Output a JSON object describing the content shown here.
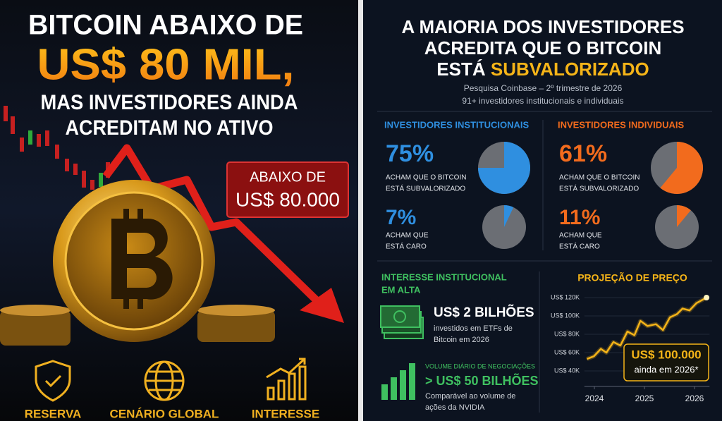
{
  "left": {
    "headline": [
      "BITCOIN ABAIXO DE",
      "US$ 80 MIL,",
      "MAS INVESTIDORES AINDA",
      "ACREDITAM NO ATIVO"
    ],
    "badge": [
      "ABAIXO DE",
      "US$ 80.000"
    ],
    "icons": [
      "RESERVA",
      "CENÁRIO GLOBAL",
      "INTERESSE"
    ]
  },
  "right": {
    "title": [
      "A MAIORIA DOS INVESTIDORES",
      "ACREDITA QUE O BITCOIN"
    ],
    "title_last": [
      "ESTÁ ",
      "SUBVALORIZADO"
    ],
    "subtitle": [
      "Pesquisa Coinbase – 2º trimestre de 2026",
      "91+ investidores institucionais e individuais"
    ],
    "groups": [
      {
        "heading": "INVESTIDORES INSTITUCIONAIS",
        "color": "#2f8fe0",
        "stats": [
          {
            "value": 75,
            "label": "75%",
            "lines": [
              "ACHAM QUE O BITCOIN",
              "ESTÁ SUBVALORIZADO"
            ]
          },
          {
            "value": 7,
            "label": "7%",
            "lines": [
              "ACHAM QUE",
              "ESTÁ CARO"
            ]
          }
        ]
      },
      {
        "heading": "INVESTIDORES INDIVIDUAIS",
        "color": "#f26b1d",
        "stats": [
          {
            "value": 61,
            "label": "61%",
            "lines": [
              "ACHAM QUE O BITCOIN",
              "ESTÁ SUBVALORIZADO"
            ]
          },
          {
            "value": 11,
            "label": "11%",
            "lines": [
              "ACHAM QUE",
              "ESTÁ CARO"
            ]
          }
        ]
      }
    ],
    "interest": {
      "heading": [
        "INTERESSE INSTITUCIONAL",
        "EM ALTA"
      ],
      "etf": {
        "value": "US$ 2 BILHÕES",
        "lines": [
          "investidos em ETFs de",
          "Bitcoin em 2026"
        ]
      },
      "volume": {
        "label": "VOLUME DIÁRIO DE NEGOCIAÇÕES",
        "value": "> US$ 50 BILHÕES",
        "lines": [
          "Comparável ao volume de",
          "ações da NVIDIA"
        ]
      }
    }
  },
  "chart_data": {
    "type": "line",
    "title": "PROJEÇÃO DE PREÇO",
    "x": [
      2023.85,
      2023.99,
      2024.13,
      2024.24,
      2024.38,
      2024.52,
      2024.66,
      2024.8,
      2024.92,
      2025.06,
      2025.23,
      2025.37,
      2025.51,
      2025.65,
      2025.76,
      2025.9,
      2026.04,
      2026.24
    ],
    "values": [
      53000,
      56000,
      64000,
      60000,
      71500,
      67700,
      83000,
      79000,
      94600,
      89000,
      91000,
      84600,
      98500,
      102000,
      108000,
      106000,
      114000,
      120000
    ],
    "color": "#f5b418",
    "xlim": [
      2023.8,
      2026.3
    ],
    "xticks": [
      2024,
      2025,
      2026
    ],
    "ylim": [
      35000,
      125000
    ],
    "yticks": [
      {
        "value": 40000,
        "label": "US$ 40K"
      },
      {
        "value": 60000,
        "label": "US$ 60K"
      },
      {
        "value": 80000,
        "label": "US$ 80K"
      },
      {
        "value": 100000,
        "label": "US$ 100K"
      },
      {
        "value": 120000,
        "label": "US$ 120K"
      }
    ],
    "grid": true,
    "annotation": [
      "US$ 100.000",
      "ainda em 2026*"
    ]
  }
}
